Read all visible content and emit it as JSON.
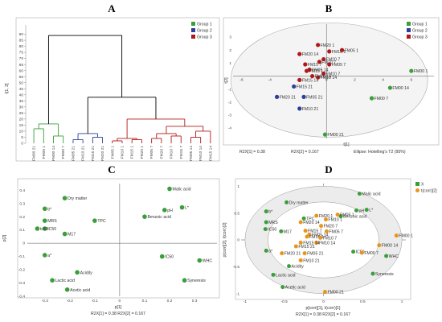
{
  "panels": [
    "A",
    "B",
    "C",
    "D"
  ],
  "chart_data": [
    {
      "type": "dendrogram",
      "panel": "A",
      "ylabel": "t[1, 2]",
      "y_ticks": [
        0,
        5,
        10,
        15,
        20,
        25,
        30,
        35,
        40,
        45,
        50,
        55,
        60,
        65,
        70,
        75,
        80,
        85,
        90
      ],
      "ylim": [
        0,
        95
      ],
      "legend": [
        {
          "name": "Group 1",
          "color": "#3a9e3a"
        },
        {
          "name": "Group 2",
          "color": "#2c3f9a"
        },
        {
          "name": "Group 3",
          "color": "#b01818"
        }
      ],
      "leaves": [
        "FM00 21",
        "FM00 1",
        "FM00 14",
        "FM00 7",
        "FM05 21",
        "FM10 21",
        "FM15 21",
        "FM20 21",
        "FM05 1",
        "FM10 1",
        "FM15 1",
        "FM20 1",
        "FM05 7",
        "FM20 7",
        "FM10 7",
        "FM15 7",
        "FM05 14",
        "FM10 14",
        "FM15 14"
      ],
      "leaf_groups": [
        1,
        1,
        1,
        1,
        2,
        2,
        2,
        2,
        3,
        3,
        3,
        3,
        3,
        3,
        3,
        3,
        3,
        3,
        3
      ]
    },
    {
      "type": "scatter",
      "panel": "B",
      "xlabel": "t[1]",
      "ylabel": "t[2]",
      "x_ticks": [
        -6,
        -4,
        -2,
        0,
        2,
        4,
        6
      ],
      "y_ticks": [
        -4,
        -3,
        -2,
        -1,
        0,
        1,
        2,
        3
      ],
      "xlim": [
        -6.6,
        7.6
      ],
      "ylim": [
        -4.8,
        4.0
      ],
      "legend": [
        {
          "name": "Group 1",
          "color": "#3a9e3a"
        },
        {
          "name": "Group 2",
          "color": "#2c3f9a"
        },
        {
          "name": "Group 3",
          "color": "#b01818"
        }
      ],
      "footer_left": "R2X[1] = 0.38",
      "footer_mid": "R2X[2] = 0.167",
      "footer_right": "Ellipse: Hotelling's T2 (95%)",
      "points": [
        {
          "label": "FM00 1",
          "x": 6.0,
          "y": 0.4,
          "group": 1
        },
        {
          "label": "FM00 14",
          "x": 4.5,
          "y": -0.9,
          "group": 1
        },
        {
          "label": "FM00 7",
          "x": 3.2,
          "y": -1.7,
          "group": 1
        },
        {
          "label": "FM00 21",
          "x": -0.1,
          "y": -4.5,
          "group": 1
        },
        {
          "label": "FM15 21",
          "x": -2.3,
          "y": -0.8,
          "group": 2
        },
        {
          "label": "FM20 21",
          "x": -3.5,
          "y": -1.6,
          "group": 2
        },
        {
          "label": "FM05 21",
          "x": -1.6,
          "y": -1.6,
          "group": 2
        },
        {
          "label": "FM10 21",
          "x": -1.9,
          "y": -2.5,
          "group": 2
        },
        {
          "label": "FM20 1",
          "x": -0.6,
          "y": 2.4,
          "group": 3
        },
        {
          "label": "FM10 1",
          "x": 0.2,
          "y": 1.9,
          "group": 3
        },
        {
          "label": "FM05 1",
          "x": 1.1,
          "y": 2.0,
          "group": 3
        },
        {
          "label": "FM20 14",
          "x": -1.9,
          "y": 1.7,
          "group": 3
        },
        {
          "label": "FM20 7",
          "x": -0.2,
          "y": 1.3,
          "group": 3
        },
        {
          "label": "FM10 7",
          "x": -0.5,
          "y": 1.1,
          "group": 3
        },
        {
          "label": "FM15 7",
          "x": -1.5,
          "y": 0.9,
          "group": 3
        },
        {
          "label": "FM05 7",
          "x": 0.2,
          "y": 0.9,
          "group": 3
        },
        {
          "label": "FM05 14",
          "x": -1.2,
          "y": 0.5,
          "group": 3
        },
        {
          "label": "FM15 1",
          "x": -1.4,
          "y": 0.4,
          "group": 3
        },
        {
          "label": "FM10 14",
          "x": -0.6,
          "y": -0.1,
          "group": 3
        },
        {
          "label": "FM15 14",
          "x": -1.9,
          "y": -0.3,
          "group": 3
        },
        {
          "label": "FM10 7",
          "x": -0.2,
          "y": 0.2,
          "group": 3
        },
        {
          "label": "FM10 14",
          "x": -1.0,
          "y": 0.0,
          "group": 3
        }
      ]
    },
    {
      "type": "scatter",
      "panel": "C",
      "xlabel": "p[1]",
      "ylabel": "p[2]",
      "x_ticks": [
        -0.3,
        -0.2,
        -0.1,
        0,
        0.1,
        0.2,
        0.3
      ],
      "y_ticks": [
        -0.4,
        -0.3,
        -0.2,
        -0.1,
        0,
        0.1,
        0.2,
        0.3,
        0.4
      ],
      "xlim": [
        -0.37,
        0.39
      ],
      "ylim": [
        -0.4,
        0.45
      ],
      "footer": "R2X[1] = 0.38    R2X[2] = 0.167",
      "color": "#3a9e3a",
      "points": [
        {
          "label": "Malic acid",
          "x": 0.2,
          "y": 0.41
        },
        {
          "label": "L*",
          "x": 0.25,
          "y": 0.27
        },
        {
          "label": "pH",
          "x": 0.18,
          "y": 0.25
        },
        {
          "label": "Dry matter",
          "x": -0.22,
          "y": 0.34
        },
        {
          "label": "b*",
          "x": -0.3,
          "y": 0.26
        },
        {
          "label": "TPC",
          "x": -0.1,
          "y": 0.17
        },
        {
          "label": "Benzoic acid",
          "x": 0.1,
          "y": 0.2
        },
        {
          "label": "MRS",
          "x": -0.3,
          "y": 0.17
        },
        {
          "label": "IC50",
          "x": -0.3,
          "y": 0.11
        },
        {
          "label": "tc50",
          "x": -0.33,
          "y": 0.11
        },
        {
          "label": "M17",
          "x": -0.22,
          "y": 0.07
        },
        {
          "label": "a*",
          "x": -0.3,
          "y": -0.09
        },
        {
          "label": "IC50",
          "x": 0.17,
          "y": -0.1
        },
        {
          "label": "WHC",
          "x": 0.32,
          "y": -0.13
        },
        {
          "label": "Acidity",
          "x": -0.17,
          "y": -0.22
        },
        {
          "label": "Lactic acid",
          "x": -0.27,
          "y": -0.28
        },
        {
          "label": "Acetic acid",
          "x": -0.21,
          "y": -0.35
        },
        {
          "label": "Syneresis",
          "x": 0.26,
          "y": -0.28
        }
      ]
    },
    {
      "type": "scatter",
      "panel": "D",
      "xlabel": "p[corr][1], t(corr)[1]",
      "ylabel": "p[corr][2], t(corr)[2]",
      "x_ticks": [
        -1,
        -0.5,
        0,
        0.5,
        1
      ],
      "y_ticks": [
        -1,
        -0.5,
        0,
        0.5,
        1
      ],
      "xlim": [
        -1.05,
        1.05
      ],
      "ylim": [
        -1.05,
        1.05
      ],
      "footer": "R2X[1] = 0.38    R2X[2] = 0.167",
      "legend": [
        {
          "name": "X",
          "color": "#3a9e3a"
        },
        {
          "name": "t(corr)[2]",
          "color": "#e8951c"
        }
      ],
      "x_points": [
        {
          "label": "Malic acid",
          "x": 0.46,
          "y": 0.86
        },
        {
          "label": "L*",
          "x": 0.55,
          "y": 0.56
        },
        {
          "label": "pH",
          "x": 0.42,
          "y": 0.55
        },
        {
          "label": "Dry matter",
          "x": -0.47,
          "y": 0.7
        },
        {
          "label": "b*",
          "x": -0.73,
          "y": 0.53
        },
        {
          "label": "MRS",
          "x": -0.73,
          "y": 0.33
        },
        {
          "label": "IC50",
          "x": -0.74,
          "y": 0.2
        },
        {
          "label": "M17",
          "x": -0.54,
          "y": 0.16
        },
        {
          "label": "a*",
          "x": -0.73,
          "y": -0.2
        },
        {
          "label": "IC50",
          "x": 0.38,
          "y": -0.22
        },
        {
          "label": "WHC",
          "x": 0.8,
          "y": -0.3
        },
        {
          "label": "Acidity",
          "x": -0.44,
          "y": -0.49
        },
        {
          "label": "Lactic acid",
          "x": -0.64,
          "y": -0.65
        },
        {
          "label": "Acetic acid",
          "x": -0.52,
          "y": -0.88
        },
        {
          "label": "Syneresis",
          "x": 0.63,
          "y": -0.63
        },
        {
          "label": "TPC",
          "x": -0.25,
          "y": 0.4
        },
        {
          "label": "Benzoic acid",
          "x": 0.22,
          "y": 0.44
        }
      ],
      "t_points": [
        {
          "label": "FM00 1",
          "x": 0.93,
          "y": 0.08
        },
        {
          "label": "FM00 14",
          "x": 0.71,
          "y": -0.1
        },
        {
          "label": "FM00 7",
          "x": 0.49,
          "y": -0.24
        },
        {
          "label": "FM00 21",
          "x": 0.02,
          "y": -0.97
        },
        {
          "label": "FM05 1",
          "x": 0.18,
          "y": 0.47
        },
        {
          "label": "FM10 1",
          "x": 0.03,
          "y": 0.38
        },
        {
          "label": "FM20 1",
          "x": -0.09,
          "y": 0.45
        },
        {
          "label": "FM20 14",
          "x": -0.29,
          "y": 0.33
        },
        {
          "label": "FM20 7",
          "x": -0.03,
          "y": 0.26
        },
        {
          "label": "FM05 7",
          "x": 0.04,
          "y": 0.16
        },
        {
          "label": "FM15 7",
          "x": -0.23,
          "y": 0.17
        },
        {
          "label": "FM05 14",
          "x": -0.18,
          "y": 0.1
        },
        {
          "label": "FM15 1",
          "x": -0.21,
          "y": 0.06
        },
        {
          "label": "FM10 7",
          "x": -0.04,
          "y": 0.04
        },
        {
          "label": "FM10 14",
          "x": -0.09,
          "y": -0.05
        },
        {
          "label": "FM15 14",
          "x": -0.29,
          "y": -0.05
        },
        {
          "label": "FM15 21",
          "x": -0.35,
          "y": -0.12
        },
        {
          "label": "FM20 21",
          "x": -0.53,
          "y": -0.25
        },
        {
          "label": "FM05 21",
          "x": -0.24,
          "y": -0.25
        },
        {
          "label": "FM10 21",
          "x": -0.29,
          "y": -0.38
        }
      ]
    }
  ]
}
